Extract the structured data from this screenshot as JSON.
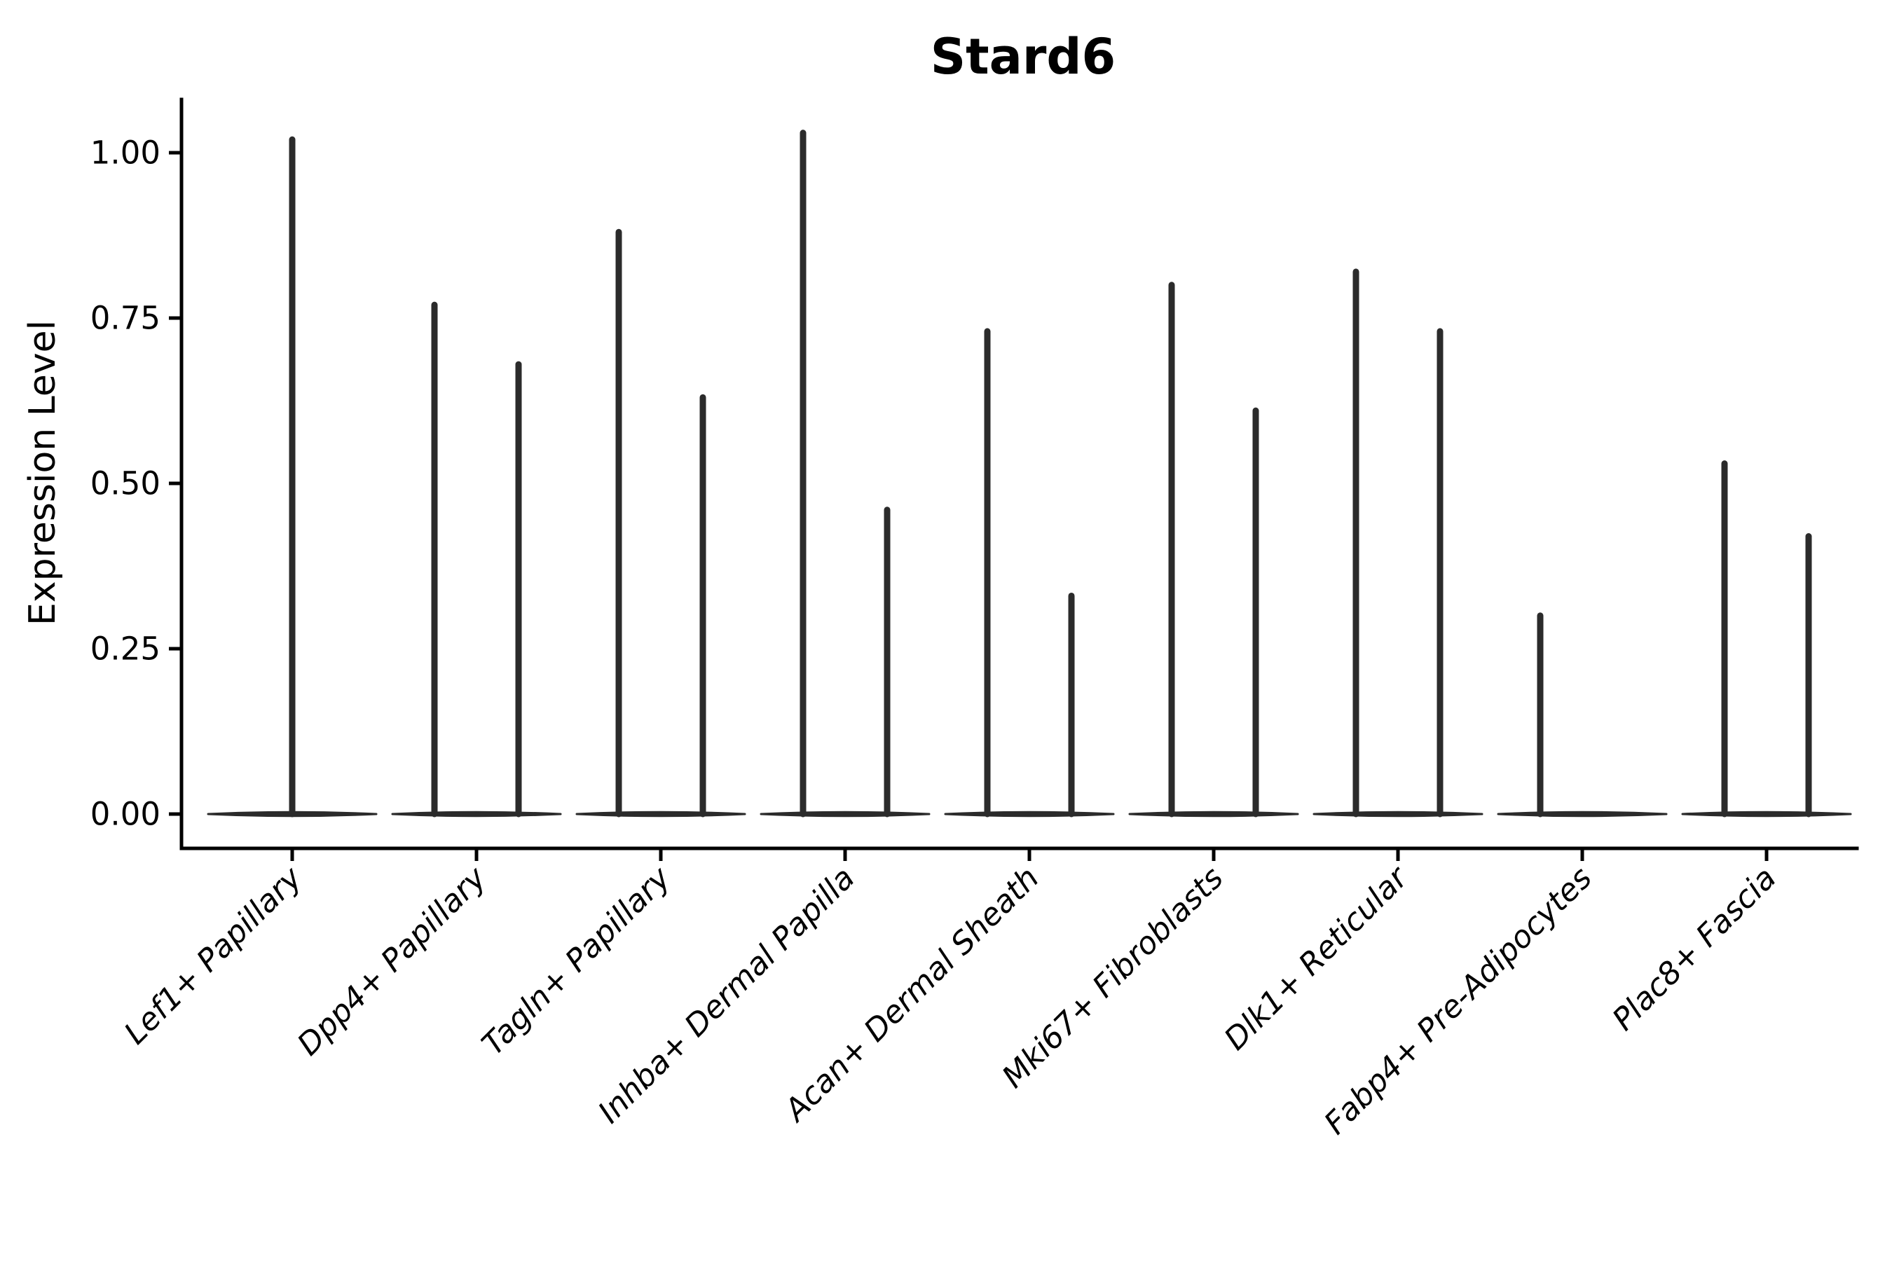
{
  "chart_data": {
    "type": "violin",
    "title": "Stard6",
    "ylabel": "Expression Level",
    "xlabel": "",
    "yticks": [
      "0.00",
      "0.25",
      "0.50",
      "0.75",
      "1.00"
    ],
    "ylim": [
      -0.05,
      1.08
    ],
    "grid": false,
    "legend": false,
    "layout_hint": "single panel, left and bottom spines only, x tick labels italic rotated 45 degrees, violins are near-zero density with thin vertical spikes to the max expression value",
    "violins": [
      {
        "category": "Lef1+ Papillary",
        "spikes": [
          {
            "pos": "center",
            "max": 1.02
          }
        ]
      },
      {
        "category": "Dpp4+ Papillary",
        "spikes": [
          {
            "pos": "left",
            "max": 0.77
          },
          {
            "pos": "right",
            "max": 0.68
          }
        ]
      },
      {
        "category": "Tagln+ Papillary",
        "spikes": [
          {
            "pos": "left",
            "max": 0.88
          },
          {
            "pos": "right",
            "max": 0.63
          }
        ]
      },
      {
        "category": "Inhba+ Dermal Papilla",
        "spikes": [
          {
            "pos": "left",
            "max": 1.03
          },
          {
            "pos": "right",
            "max": 0.46
          }
        ]
      },
      {
        "category": "Acan+ Dermal Sheath",
        "spikes": [
          {
            "pos": "left",
            "max": 0.73
          },
          {
            "pos": "right",
            "max": 0.33
          }
        ]
      },
      {
        "category": "Mki67+ Fibroblasts",
        "spikes": [
          {
            "pos": "left",
            "max": 0.8
          },
          {
            "pos": "right",
            "max": 0.61
          }
        ]
      },
      {
        "category": "Dlk1+ Reticular",
        "spikes": [
          {
            "pos": "left",
            "max": 0.82
          },
          {
            "pos": "right",
            "max": 0.73
          }
        ]
      },
      {
        "category": "Fabp4+ Pre-Adipocytes",
        "spikes": [
          {
            "pos": "left",
            "max": 0.3
          },
          {
            "pos": "right",
            "max": 0.0
          }
        ]
      },
      {
        "category": "Plac8+ Fascia",
        "spikes": [
          {
            "pos": "left",
            "max": 0.53
          },
          {
            "pos": "right",
            "max": 0.42
          }
        ]
      }
    ],
    "colors": {
      "violin": "#2b2b2b",
      "axis": "#000000",
      "text": "#000000",
      "background": "#ffffff"
    }
  }
}
